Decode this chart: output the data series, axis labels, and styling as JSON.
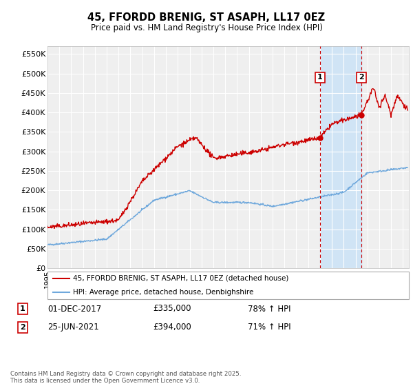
{
  "title": "45, FFORDD BRENIG, ST ASAPH, LL17 0EZ",
  "subtitle": "Price paid vs. HM Land Registry's House Price Index (HPI)",
  "ylabel_ticks": [
    "£0",
    "£50K",
    "£100K",
    "£150K",
    "£200K",
    "£250K",
    "£300K",
    "£350K",
    "£400K",
    "£450K",
    "£500K",
    "£550K"
  ],
  "ytick_values": [
    0,
    50000,
    100000,
    150000,
    200000,
    250000,
    300000,
    350000,
    400000,
    450000,
    500000,
    550000
  ],
  "ylim": [
    0,
    570000
  ],
  "xlim_start": 1995.0,
  "xlim_end": 2025.5,
  "hpi_color": "#6fa8dc",
  "price_color": "#cc0000",
  "marker1_date": 2018.0,
  "marker2_date": 2021.5,
  "vline_color": "#cc0000",
  "legend_line1": "45, FFORDD BRENIG, ST ASAPH, LL17 0EZ (detached house)",
  "legend_line2": "HPI: Average price, detached house, Denbighshire",
  "footer": "Contains HM Land Registry data © Crown copyright and database right 2025.\nThis data is licensed under the Open Government Licence v3.0.",
  "background_color": "#ffffff",
  "plot_bg_color": "#efefef",
  "grid_color": "#ffffff",
  "shaded_color": "#d0e4f5"
}
